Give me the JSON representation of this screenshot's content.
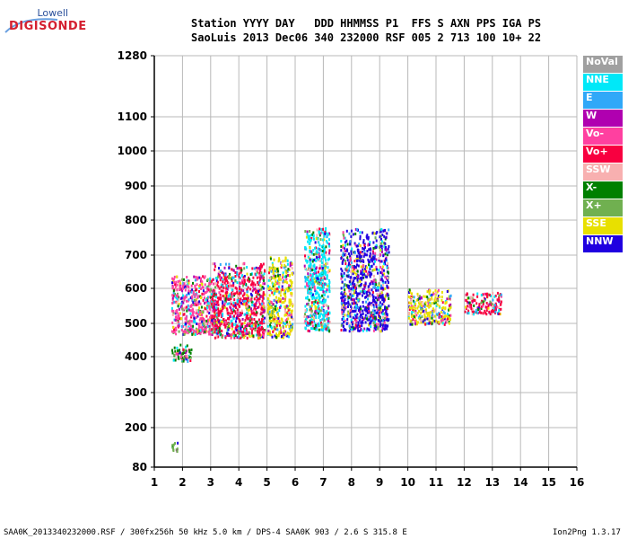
{
  "logo": {
    "brand_top": "Lowell",
    "brand_main": "DIGISONDE"
  },
  "header": {
    "line1": "Station YYYY DAY   DDD HHMMSS P1  FFS S AXN PPS IGA PS",
    "line2": "SaoLuis 2013 Dec06 340 232000 RSF 005 2 713 100 10+ 22"
  },
  "footer": {
    "left": "SAA0K_2013340232000.RSF / 300fx256h 50 kHz 5.0 km / DPS-4 SAA0K 903 / 2.6 S 315.8 E",
    "right": "Ion2Png 1.3.17"
  },
  "legend": {
    "items": [
      {
        "label": "NoVal",
        "color": "#a0a0a0"
      },
      {
        "label": "NNE",
        "color": "#00e8f8"
      },
      {
        "label": "E",
        "color": "#30a8f8"
      },
      {
        "label": "W",
        "color": "#b000b0"
      },
      {
        "label": "Vo-",
        "color": "#ff40a0"
      },
      {
        "label": "Vo+",
        "color": "#f80040"
      },
      {
        "label": "SSW",
        "color": "#f8b0b0"
      },
      {
        "label": "X-",
        "color": "#008000"
      },
      {
        "label": "X+",
        "color": "#70b050"
      },
      {
        "label": "SSE",
        "color": "#e8e000"
      },
      {
        "label": "NNW",
        "color": "#2000e0"
      }
    ]
  },
  "chart_data": {
    "type": "scatter",
    "x_ticks": [
      "1",
      "2",
      "3",
      "4",
      "5",
      "6",
      "7",
      "8",
      "9",
      "10",
      "11",
      "12",
      "13",
      "14",
      "15",
      "16"
    ],
    "y_ticks": [
      "80",
      "200",
      "300",
      "400",
      "500",
      "600",
      "700",
      "800",
      "900",
      "1000",
      "1100",
      "1280"
    ],
    "xlim": [
      1,
      16
    ],
    "ylim": [
      80,
      1280
    ],
    "grid": true,
    "legend_position": "right",
    "series_clusters": [
      {
        "x": [
          1.6,
          2.3
        ],
        "y": [
          390,
          440
        ],
        "dominant": "X-"
      },
      {
        "x": [
          1.6,
          3.2
        ],
        "y": [
          470,
          640
        ],
        "dominant": "Vo-"
      },
      {
        "x": [
          3.0,
          4.9
        ],
        "y": [
          460,
          680
        ],
        "dominant": "Vo+"
      },
      {
        "x": [
          5.0,
          5.9
        ],
        "y": [
          460,
          700
        ],
        "dominant": "SSE"
      },
      {
        "x": [
          6.3,
          7.2
        ],
        "y": [
          480,
          780
        ],
        "dominant": "NNE"
      },
      {
        "x": [
          7.6,
          9.3
        ],
        "y": [
          480,
          780
        ],
        "dominant": "NNW"
      },
      {
        "x": [
          10.0,
          11.5
        ],
        "y": [
          500,
          600
        ],
        "dominant": "SSE"
      },
      {
        "x": [
          12.0,
          13.3
        ],
        "y": [
          530,
          590
        ],
        "dominant": "Vo+"
      },
      {
        "x": [
          1.6,
          1.8
        ],
        "y": [
          130,
          160
        ],
        "dominant": "X+"
      }
    ]
  }
}
